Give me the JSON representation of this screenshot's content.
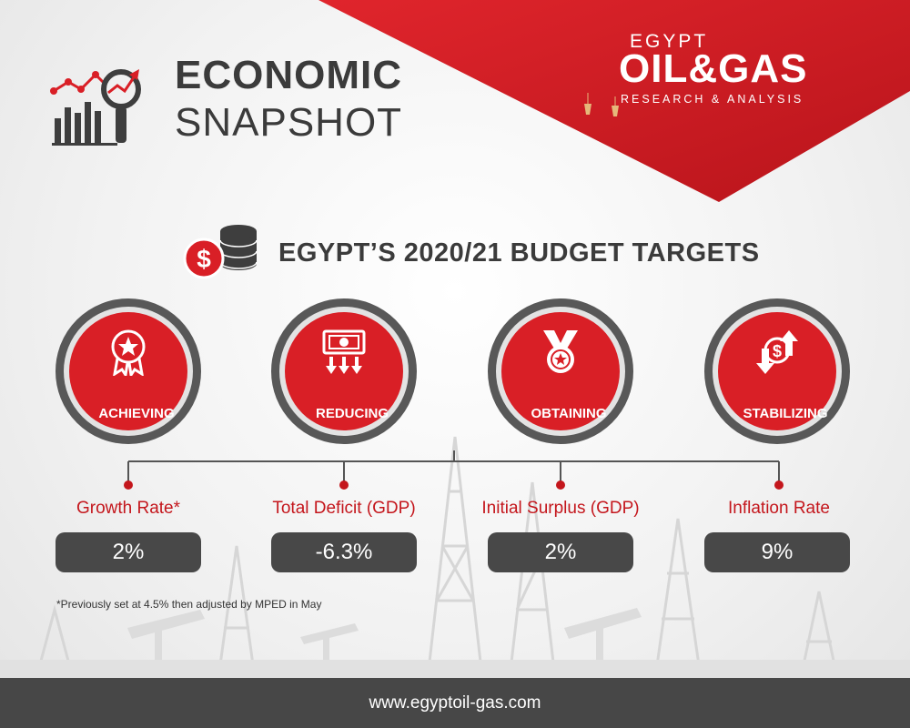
{
  "header": {
    "title_line1": "ECONOMIC",
    "title_line2": "SNAPSHOT"
  },
  "logo": {
    "top": "EGYPT",
    "main": "OIL&GAS",
    "sub": "RESEARCH & ANALYSIS"
  },
  "section": {
    "title": "EGYPT’S 2020/21 BUDGET TARGETS"
  },
  "targets": [
    {
      "label": "ACHIEVING",
      "icon": "ribbon-star-icon",
      "metric": "Growth Rate*",
      "value": "2%"
    },
    {
      "label": "REDUCING",
      "icon": "money-down-arrows-icon",
      "metric": "Total Deficit (GDP)",
      "value": "-6.3%"
    },
    {
      "label": "OBTAINING",
      "icon": "medal-icon",
      "metric": "Initial Surplus (GDP)",
      "value": "2%"
    },
    {
      "label": "STABILIZING",
      "icon": "dollar-up-down-arrows-icon",
      "metric": "Inflation Rate",
      "value": "9%"
    }
  ],
  "footnote": "*Previously set at 4.5% then adjusted by MPED in May",
  "footer": {
    "url": "www.egyptoil-gas.com"
  },
  "colors": {
    "accent_red": "#d91f26",
    "dark_gray": "#484848",
    "text_red": "#c4161c"
  }
}
